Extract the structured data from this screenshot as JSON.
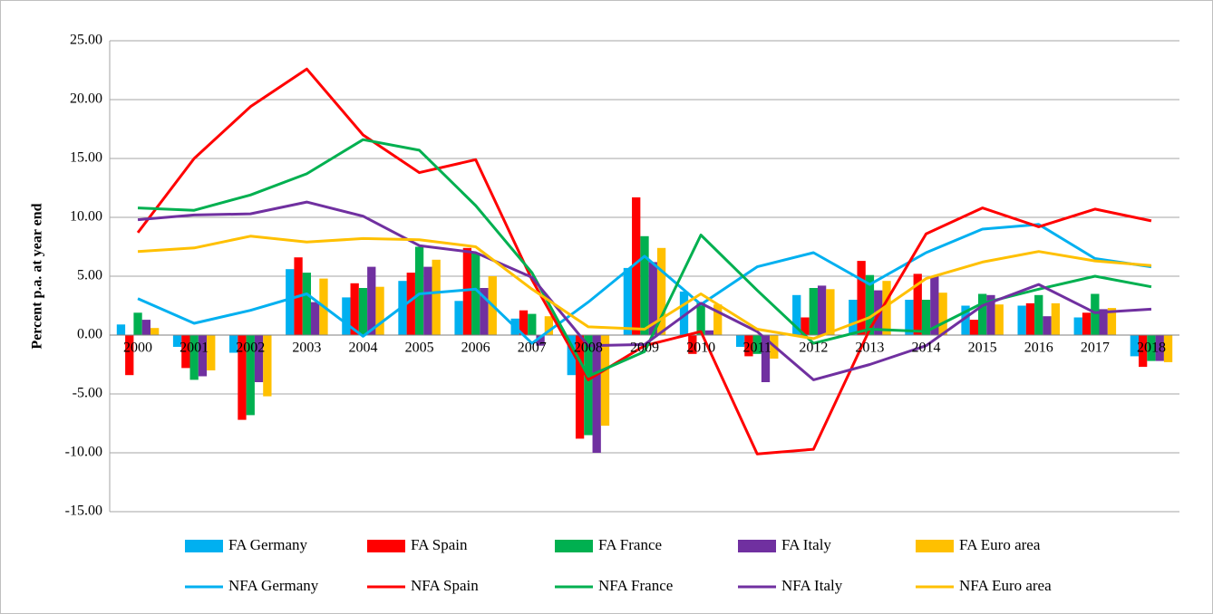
{
  "chart_data": {
    "type": "combo",
    "ylabel": "Percent p.a. at year end",
    "categories": [
      "2000",
      "2001",
      "2002",
      "2003",
      "2004",
      "2005",
      "2006",
      "2007",
      "2008",
      "2009",
      "2010",
      "2011",
      "2012",
      "2013",
      "2014",
      "2015",
      "2016",
      "2017",
      "2018"
    ],
    "ylim": [
      -15,
      25
    ],
    "yticks": [
      {
        "value": -15,
        "label": "-15.00"
      },
      {
        "value": -10,
        "label": "-10.00"
      },
      {
        "value": -5,
        "label": "-5.00"
      },
      {
        "value": 0,
        "label": "0.00"
      },
      {
        "value": 5,
        "label": "5.00"
      },
      {
        "value": 10,
        "label": "10.00"
      },
      {
        "value": 15,
        "label": "15.00"
      },
      {
        "value": 20,
        "label": "20.00"
      },
      {
        "value": 25,
        "label": "25.00"
      }
    ],
    "grid": true,
    "legend": "bottom",
    "series": [
      {
        "name": "FA Germany",
        "type": "bar",
        "color": "#00b0f0",
        "values": [
          0.9,
          -1.0,
          -1.5,
          5.6,
          3.2,
          4.6,
          2.9,
          1.4,
          -3.4,
          5.7,
          3.7,
          -1.0,
          3.4,
          3.0,
          3.0,
          2.5,
          2.5,
          1.5,
          -1.8
        ]
      },
      {
        "name": "FA Spain",
        "type": "bar",
        "color": "#ff0000",
        "values": [
          -3.4,
          -2.8,
          -7.2,
          6.6,
          4.4,
          5.3,
          7.4,
          2.1,
          -8.8,
          11.7,
          -1.6,
          -1.8,
          1.5,
          6.3,
          5.2,
          1.3,
          2.7,
          1.9,
          -2.7
        ]
      },
      {
        "name": "FA France",
        "type": "bar",
        "color": "#00b050",
        "values": [
          1.9,
          -3.8,
          -6.8,
          5.3,
          4.0,
          7.5,
          7.0,
          1.8,
          -8.5,
          8.4,
          2.8,
          -1.6,
          4.0,
          5.1,
          3.0,
          3.5,
          3.4,
          3.5,
          -2.2
        ]
      },
      {
        "name": "FA Italy",
        "type": "bar",
        "color": "#7030a0",
        "values": [
          1.3,
          -3.5,
          -4.0,
          2.8,
          5.8,
          5.8,
          4.0,
          -0.9,
          -10.0,
          6.2,
          0.4,
          -4.0,
          4.2,
          3.8,
          5.0,
          3.4,
          1.6,
          2.2,
          -2.2
        ]
      },
      {
        "name": "FA Euro area",
        "type": "bar",
        "color": "#ffc000",
        "values": [
          0.6,
          -3.0,
          -5.2,
          4.8,
          4.1,
          6.4,
          5.0,
          1.6,
          -7.7,
          7.4,
          2.6,
          -2.0,
          3.9,
          4.6,
          3.6,
          2.6,
          2.7,
          2.3,
          -2.3
        ]
      },
      {
        "name": "NFA Germany",
        "type": "line",
        "color": "#00b0f0",
        "values": [
          3.1,
          1.0,
          2.1,
          3.5,
          -0.1,
          3.5,
          3.9,
          -0.7,
          2.8,
          6.7,
          2.6,
          5.8,
          7.0,
          4.3,
          7.0,
          9.0,
          9.4,
          6.5,
          5.8
        ]
      },
      {
        "name": "NFA Spain",
        "type": "line",
        "color": "#ff0000",
        "values": [
          8.7,
          15.0,
          19.4,
          22.6,
          17.0,
          13.8,
          14.9,
          4.7,
          -3.8,
          -0.9,
          0.3,
          -10.1,
          -9.7,
          0.5,
          8.6,
          10.8,
          9.2,
          10.7,
          9.7
        ]
      },
      {
        "name": "NFA France",
        "type": "line",
        "color": "#00b050",
        "values": [
          10.8,
          10.6,
          11.9,
          13.7,
          16.6,
          15.7,
          11.0,
          5.3,
          -3.5,
          -1.4,
          8.5,
          3.8,
          -0.7,
          0.5,
          0.3,
          2.7,
          3.9,
          5.0,
          4.1
        ]
      },
      {
        "name": "NFA Italy",
        "type": "line",
        "color": "#7030a0",
        "values": [
          9.8,
          10.2,
          10.3,
          11.3,
          10.1,
          7.6,
          7.0,
          4.9,
          -0.9,
          -0.8,
          2.7,
          0.3,
          -3.8,
          -2.5,
          -0.9,
          2.5,
          4.3,
          1.9,
          2.2
        ]
      },
      {
        "name": "NFA Euro area",
        "type": "line",
        "color": "#ffc000",
        "values": [
          7.1,
          7.4,
          8.4,
          7.9,
          8.2,
          8.1,
          7.5,
          3.9,
          0.7,
          0.5,
          3.5,
          0.5,
          -0.3,
          1.5,
          4.8,
          6.2,
          7.1,
          6.3,
          5.9
        ]
      }
    ]
  }
}
